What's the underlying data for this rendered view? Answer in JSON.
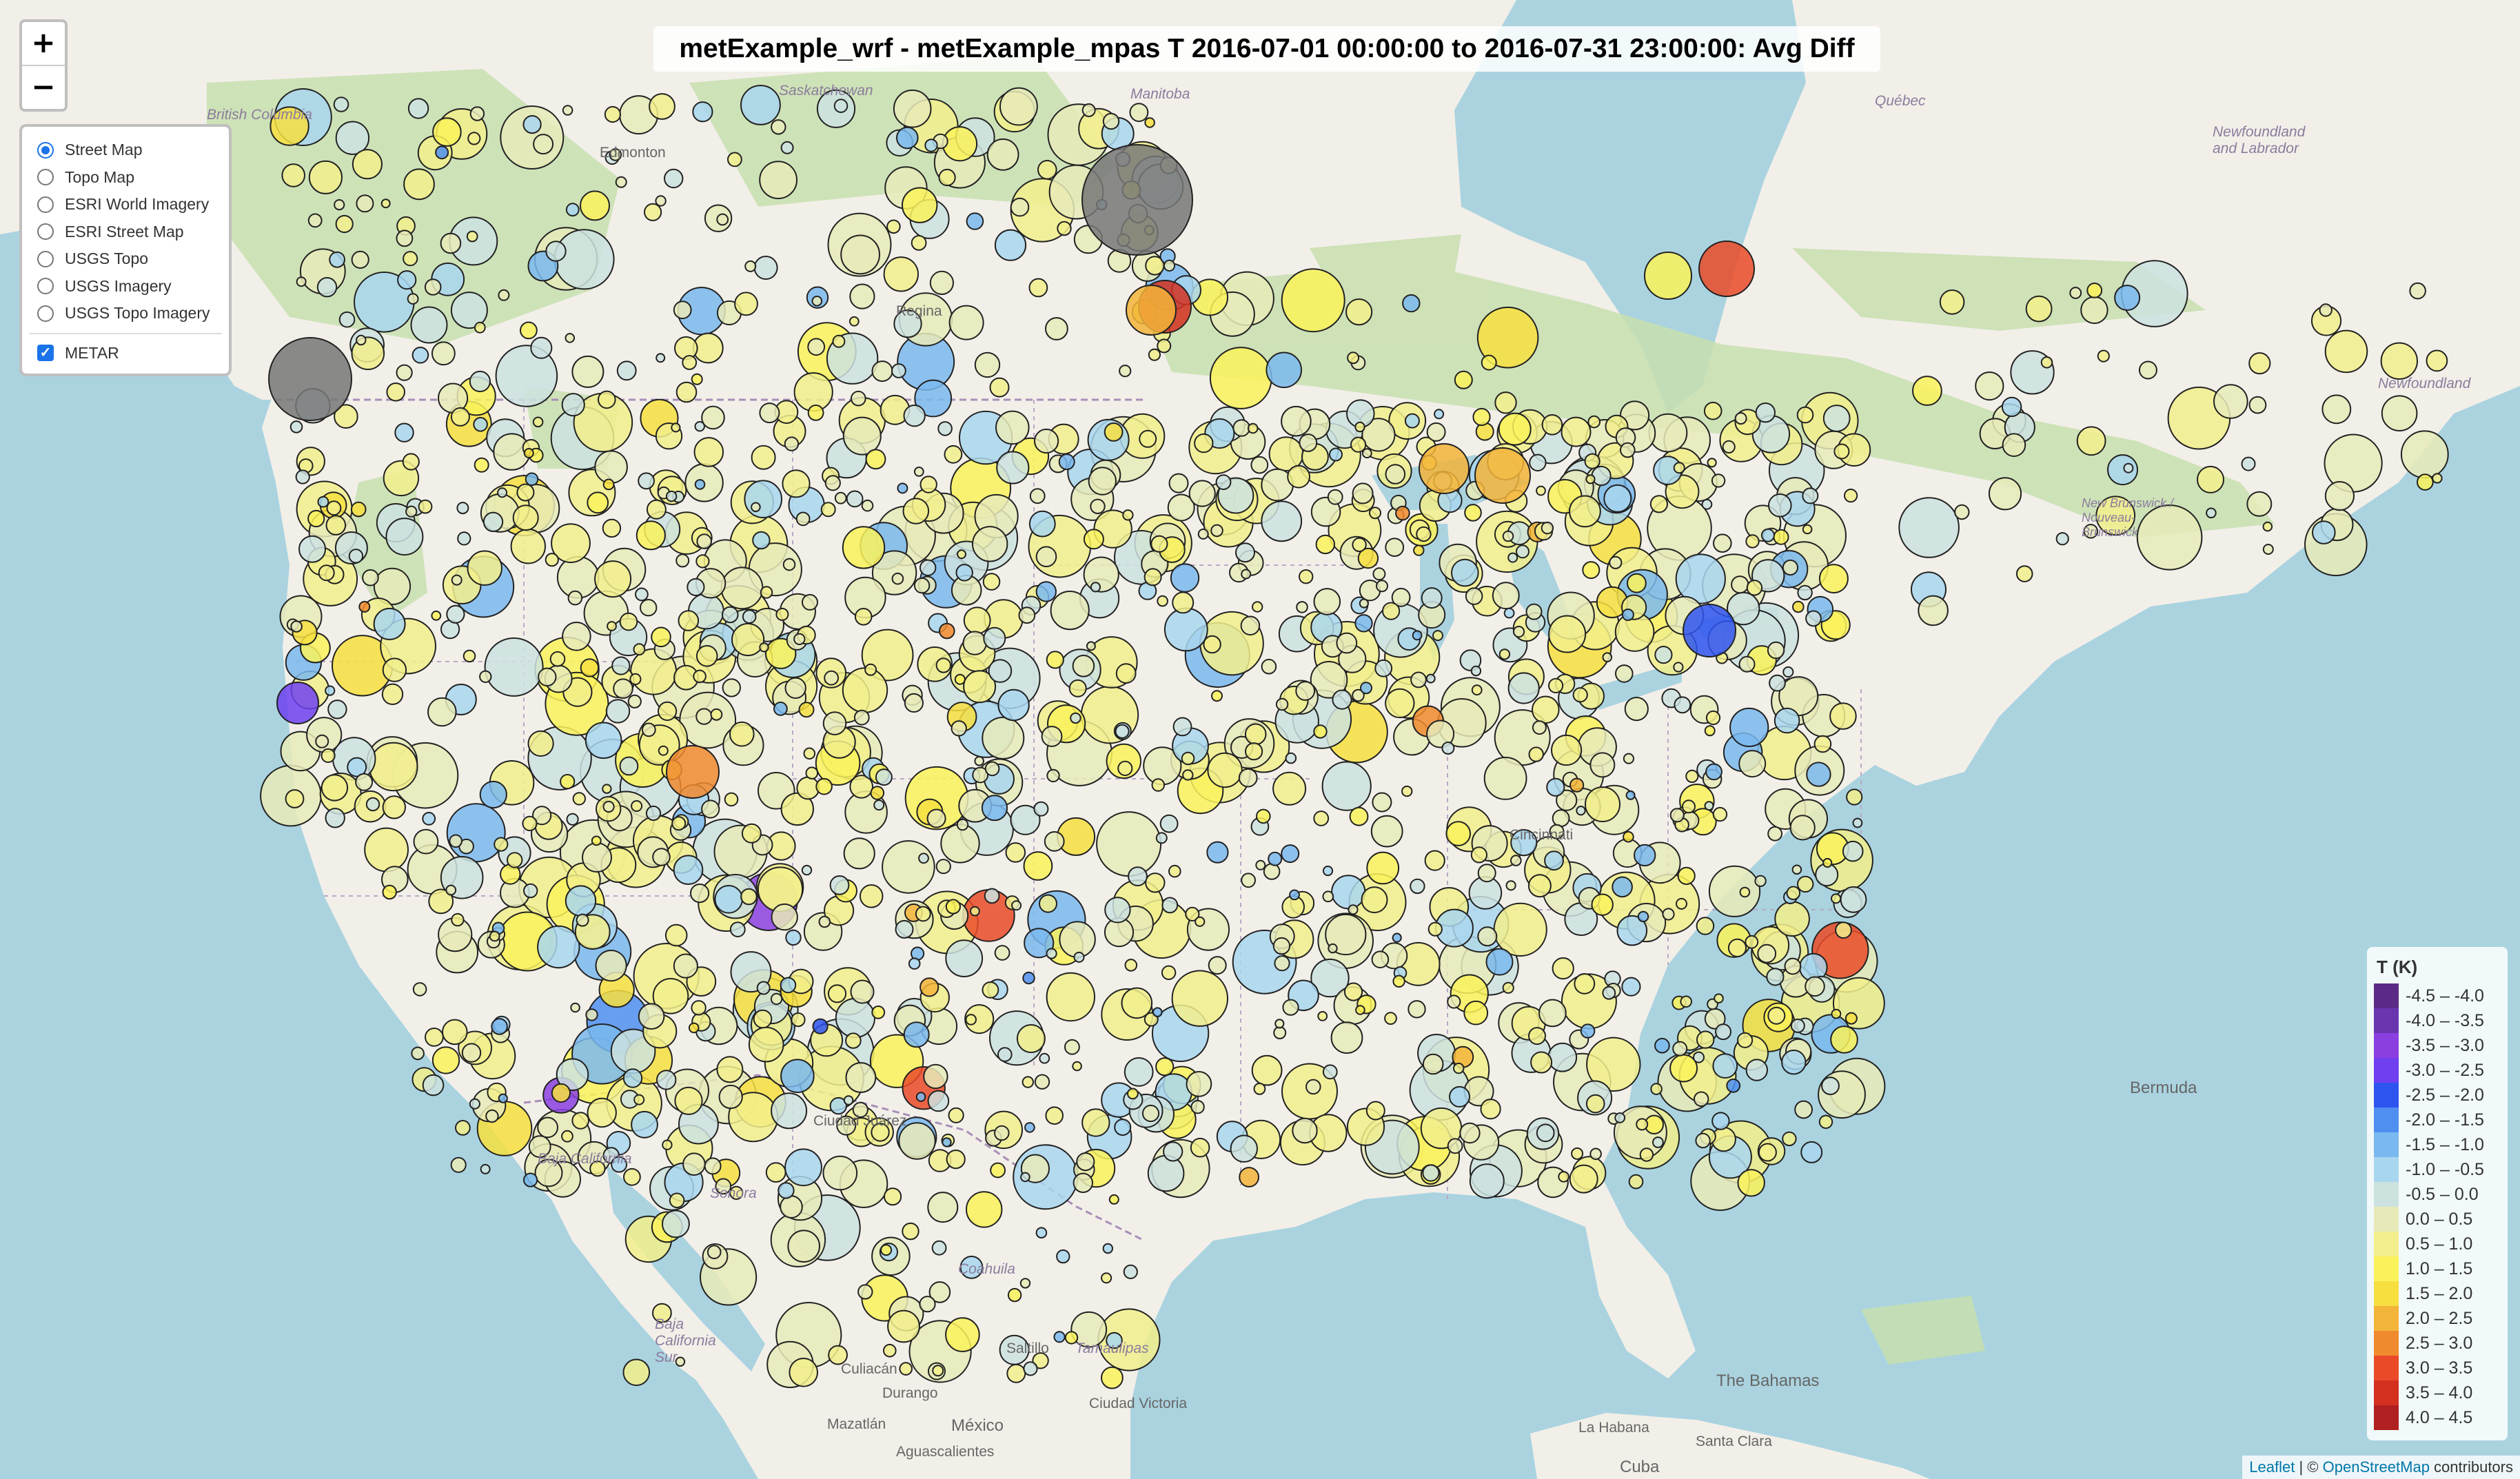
{
  "title": "metExample_wrf - metExample_mpas T 2016-07-01 00:00:00 to 2016-07-31 23:00:00: Avg Diff",
  "zoom": {
    "in_label": "+",
    "out_label": "−"
  },
  "layers": {
    "base": [
      {
        "label": "Street Map",
        "selected": true
      },
      {
        "label": "Topo Map",
        "selected": false
      },
      {
        "label": "ESRI World Imagery",
        "selected": false
      },
      {
        "label": "ESRI Street Map",
        "selected": false
      },
      {
        "label": "USGS Topo",
        "selected": false
      },
      {
        "label": "USGS Imagery",
        "selected": false
      },
      {
        "label": "USGS Topo Imagery",
        "selected": false
      }
    ],
    "overlay": {
      "label": "METAR",
      "checked": true
    }
  },
  "legend": {
    "title": "T (K)",
    "items": [
      {
        "label": "-4.5 – -4.0",
        "color": "#5b2a86"
      },
      {
        "label": "-4.0 – -3.5",
        "color": "#6a36b0"
      },
      {
        "label": "-3.5 – -3.0",
        "color": "#8b3fe0"
      },
      {
        "label": "-3.0 – -2.5",
        "color": "#6f3ff0"
      },
      {
        "label": "-2.5 – -2.0",
        "color": "#2e54f0"
      },
      {
        "label": "-2.0 – -1.5",
        "color": "#4f8ff0"
      },
      {
        "label": "-1.5 – -1.0",
        "color": "#7ab9ef"
      },
      {
        "label": "-1.0 – -0.5",
        "color": "#a9d6ef"
      },
      {
        "label": "-0.5 – 0.0",
        "color": "#cce2df"
      },
      {
        "label": "0.0 – 0.5",
        "color": "#e7eab8"
      },
      {
        "label": "0.5 – 1.0",
        "color": "#f2ef8c"
      },
      {
        "label": "1.0 – 1.5",
        "color": "#faf25a"
      },
      {
        "label": "1.5 – 2.0",
        "color": "#f7df3f"
      },
      {
        "label": "2.0 – 2.5",
        "color": "#f3b43a"
      },
      {
        "label": "2.5 – 3.0",
        "color": "#f08a2e"
      },
      {
        "label": "3.0 – 3.5",
        "color": "#ea4a28"
      },
      {
        "label": "3.5 – 4.0",
        "color": "#d43020"
      },
      {
        "label": "4.0 – 4.5",
        "color": "#b02020"
      }
    ]
  },
  "attribution": {
    "leaflet": "Leaflet",
    "sep": " | © ",
    "osm": "OpenStreetMap",
    "rest": " contributors"
  },
  "places": [
    {
      "text": "British Columbia",
      "italic": true
    },
    {
      "text": "Saskatchewan",
      "italic": true
    },
    {
      "text": "Manitoba",
      "italic": true
    },
    {
      "text": "Québec",
      "italic": true
    },
    {
      "text": "Newfoundland and Labrador",
      "italic": true
    },
    {
      "text": "Newfoundland",
      "italic": true
    },
    {
      "text": "New Brunswick / Nouveau-Brunswick",
      "italic": true
    },
    {
      "text": "Edmonton",
      "italic": false
    },
    {
      "text": "Regina",
      "italic": false
    },
    {
      "text": "Cincinnati",
      "italic": false
    },
    {
      "text": "Baja California",
      "italic": true
    },
    {
      "text": "Baja California Sur",
      "italic": true
    },
    {
      "text": "Sonora",
      "italic": true
    },
    {
      "text": "Coahuila",
      "italic": true
    },
    {
      "text": "Tamaulipas",
      "italic": true
    },
    {
      "text": "Ciudad Juárez",
      "italic": false
    },
    {
      "text": "Culiacán",
      "italic": false
    },
    {
      "text": "Durango",
      "italic": false
    },
    {
      "text": "Saltillo",
      "italic": false
    },
    {
      "text": "Ciudad Victoria",
      "italic": false
    },
    {
      "text": "Mazatlán",
      "italic": false
    },
    {
      "text": "Aguascalientes",
      "italic": false
    },
    {
      "text": "México",
      "italic": false
    },
    {
      "text": "Bermuda",
      "italic": false
    },
    {
      "text": "The Bahamas",
      "italic": false
    },
    {
      "text": "La Habana",
      "italic": false
    },
    {
      "text": "Santa Clara",
      "italic": false
    },
    {
      "text": "Cuba",
      "italic": false
    }
  ],
  "stations": {
    "description_palette_order": "legend",
    "count_by_bin": [
      0,
      0,
      2,
      0,
      1,
      4,
      70,
      120,
      260,
      520,
      520,
      120,
      40,
      6,
      4,
      3,
      0,
      0
    ]
  }
}
